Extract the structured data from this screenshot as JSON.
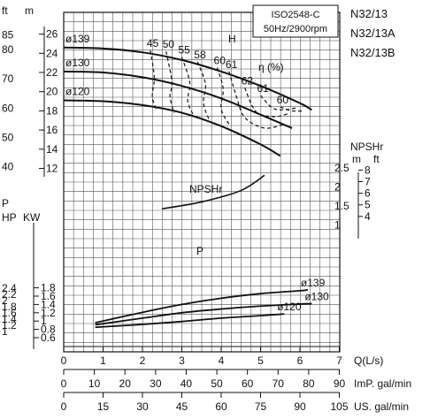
{
  "chart_data": {
    "type": "line",
    "model_labels": [
      "N32/13",
      "N32/13A",
      "N32/13B"
    ],
    "spec_box": [
      "ISO2548-C",
      "50Hz/2900rpm"
    ],
    "x_axes": [
      {
        "label": "Q(L/s)",
        "ticks": [
          "0",
          "1",
          "2",
          "3",
          "4",
          "5",
          "6",
          "7"
        ]
      },
      {
        "label": "ImP. gal/min",
        "ticks": [
          "0",
          "10",
          "20",
          "30",
          "40",
          "50",
          "60",
          "70",
          "80",
          "90"
        ]
      },
      {
        "label": "US. gal/min",
        "ticks": [
          "0",
          "15",
          "30",
          "45",
          "60",
          "75",
          "90",
          "105"
        ]
      }
    ],
    "head_axis": {
      "unit_m": "m",
      "unit_ft": "ft",
      "m_ticks": [
        "26",
        "24",
        "22",
        "20",
        "18",
        "16",
        "14",
        "12"
      ],
      "ft_ticks": [
        "85",
        "80",
        "70",
        "60",
        "50",
        "40"
      ],
      "range_m": [
        12,
        26
      ]
    },
    "npshr_axis": {
      "title": "NPSHr",
      "unit_m": "m",
      "unit_ft": "ft",
      "m_ticks": [
        "2.5",
        "2",
        "1.5",
        "1"
      ],
      "ft_ticks": [
        "8",
        "7",
        "6",
        "5",
        "4"
      ]
    },
    "power_axis": {
      "title": "P",
      "unit_hp": "HP",
      "unit_kw": "KW",
      "kw_ticks": [
        "1.8",
        "1.6",
        "1.4",
        "1.2",
        "1",
        "0.8",
        "0.6"
      ],
      "hp_ticks": [
        "2.4",
        "2.2",
        "2",
        "1.8",
        "1.6",
        "1.4",
        "1.2",
        "1"
      ]
    },
    "head_curves": [
      {
        "name": "ø139",
        "points": [
          [
            0,
            24.6
          ],
          [
            1,
            24.5
          ],
          [
            2,
            24.1
          ],
          [
            3,
            23.3
          ],
          [
            4,
            22.1
          ],
          [
            5,
            20.6
          ],
          [
            6,
            18.8
          ],
          [
            6.3,
            18.1
          ]
        ]
      },
      {
        "name": "ø130",
        "points": [
          [
            0,
            22.1
          ],
          [
            1,
            22.0
          ],
          [
            2,
            21.5
          ],
          [
            3,
            20.6
          ],
          [
            4,
            19.3
          ],
          [
            5,
            17.6
          ],
          [
            5.8,
            16.2
          ]
        ]
      },
      {
        "name": "ø120",
        "points": [
          [
            0,
            19.1
          ],
          [
            1,
            19.0
          ],
          [
            2,
            18.6
          ],
          [
            3,
            17.8
          ],
          [
            4,
            16.4
          ],
          [
            5,
            14.5
          ],
          [
            5.5,
            13.3
          ]
        ]
      }
    ],
    "efficiency_label": "η (%)",
    "head_curve_label": "H",
    "efficiency_curves": [
      {
        "name": "45",
        "points": [
          [
            2.2,
            24.3
          ],
          [
            2.3,
            21.5
          ],
          [
            2.25,
            19.5
          ],
          [
            2.35,
            18.2
          ]
        ]
      },
      {
        "name": "50",
        "points": [
          [
            2.6,
            24.2
          ],
          [
            2.75,
            21.0
          ],
          [
            2.7,
            19.5
          ],
          [
            2.8,
            17.8
          ]
        ]
      },
      {
        "name": "55",
        "points": [
          [
            3.0,
            23.6
          ],
          [
            3.2,
            21.0
          ],
          [
            3.15,
            19.0
          ],
          [
            3.3,
            17.5
          ]
        ]
      },
      {
        "name": "58",
        "points": [
          [
            3.4,
            23.1
          ],
          [
            3.6,
            20.8
          ],
          [
            3.55,
            18.8
          ],
          [
            3.7,
            17.0
          ]
        ]
      },
      {
        "name": "60",
        "points": [
          [
            3.9,
            22.5
          ],
          [
            4.05,
            20.3
          ],
          [
            4.0,
            18.2
          ],
          [
            4.2,
            16.6
          ]
        ]
      },
      {
        "name": "61",
        "points": [
          [
            4.2,
            22.1
          ],
          [
            4.4,
            19.3
          ],
          [
            4.6,
            17.3
          ],
          [
            5.1,
            16.2
          ],
          [
            5.6,
            16.6
          ]
        ]
      },
      {
        "name": "62",
        "points": [
          [
            4.6,
            20.4
          ],
          [
            4.8,
            18.4
          ],
          [
            5.0,
            17.6
          ],
          [
            5.4,
            17.4
          ],
          [
            5.7,
            17.7
          ]
        ]
      },
      {
        "name": "61",
        "points": [
          [
            5.0,
            19.6
          ],
          [
            5.3,
            18.3
          ],
          [
            5.6,
            18.1
          ],
          [
            5.9,
            18.3
          ]
        ]
      },
      {
        "name": "60",
        "points": [
          [
            5.5,
            18.4
          ],
          [
            5.8,
            18.0
          ],
          [
            6.1,
            18.0
          ]
        ]
      }
    ],
    "efficiency_values": [
      "45",
      "50",
      "55",
      "58",
      "60",
      "61",
      "62",
      "61",
      "60"
    ],
    "npshr_curve": {
      "name": "NPSHr",
      "points": [
        [
          2.5,
          1.42
        ],
        [
          3.5,
          1.6
        ],
        [
          4.5,
          1.9
        ],
        [
          5.1,
          2.3
        ]
      ]
    },
    "power_curves": [
      {
        "name": "ø139",
        "points": [
          [
            0.8,
            0.96
          ],
          [
            2,
            1.21
          ],
          [
            3,
            1.4
          ],
          [
            4,
            1.55
          ],
          [
            5,
            1.66
          ],
          [
            6,
            1.73
          ],
          [
            6.2,
            1.75
          ]
        ]
      },
      {
        "name": "ø130",
        "points": [
          [
            0.8,
            0.91
          ],
          [
            2,
            1.07
          ],
          [
            3,
            1.2
          ],
          [
            4,
            1.29
          ],
          [
            5,
            1.36
          ],
          [
            6,
            1.41
          ],
          [
            6.3,
            1.42
          ]
        ]
      },
      {
        "name": "ø120",
        "points": [
          [
            0.8,
            0.85
          ],
          [
            2,
            0.92
          ],
          [
            3,
            0.99
          ],
          [
            4,
            1.07
          ],
          [
            5,
            1.13
          ],
          [
            5.6,
            1.17
          ]
        ]
      }
    ],
    "power_curve_label": "P",
    "grid": true
  }
}
